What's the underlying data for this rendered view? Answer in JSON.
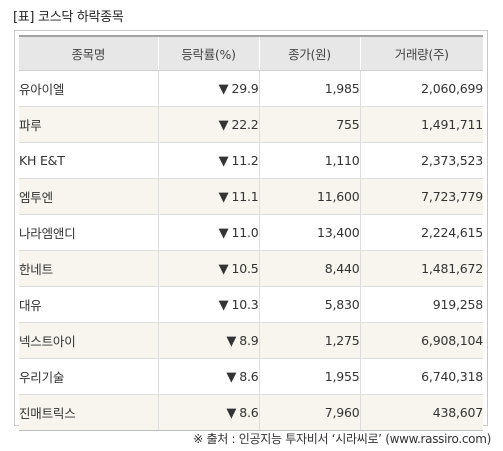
{
  "title": "[표] 코스닥 하락종목",
  "headers": [
    "종목명",
    "등락률(%)",
    "종가(원)",
    "거래량(주)"
  ],
  "down_arrow": "▼",
  "colors": {
    "down": "#1e6fd0",
    "header_bg": "#e7e7e7",
    "alt_row_bg": "#f7f5ee"
  },
  "rows": [
    {
      "name": "유아이엘",
      "change": "29.9",
      "close": "1,985",
      "volume": "2,060,699"
    },
    {
      "name": "파루",
      "change": "22.2",
      "close": "755",
      "volume": "1,491,711"
    },
    {
      "name": "KH E&T",
      "change": "11.2",
      "close": "1,110",
      "volume": "2,373,523"
    },
    {
      "name": "엠투엔",
      "change": "11.1",
      "close": "11,600",
      "volume": "7,723,779"
    },
    {
      "name": "나라엠앤디",
      "change": "11.0",
      "close": "13,400",
      "volume": "2,224,615"
    },
    {
      "name": "한네트",
      "change": "10.5",
      "close": "8,440",
      "volume": "1,481,672"
    },
    {
      "name": "대유",
      "change": "10.3",
      "close": "5,830",
      "volume": "919,258"
    },
    {
      "name": "넥스트아이",
      "change": "8.9",
      "close": "1,275",
      "volume": "6,908,104"
    },
    {
      "name": "우리기술",
      "change": "8.6",
      "close": "1,955",
      "volume": "6,740,318"
    },
    {
      "name": "진매트릭스",
      "change": "8.6",
      "close": "7,960",
      "volume": "438,607"
    }
  ],
  "source": "※ 출처 : 인공지능 투자비서 ‘시라씨로’ (www.rassiro.com)"
}
